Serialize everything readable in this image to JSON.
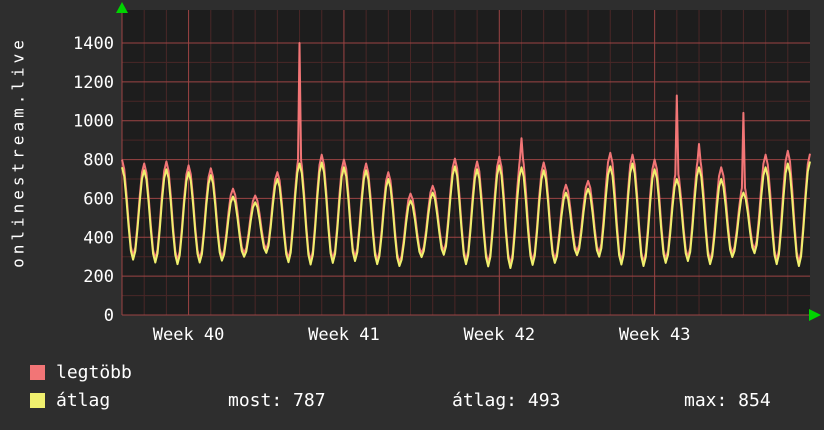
{
  "left_label": "onlinestream.live",
  "legend": {
    "series": [
      {
        "label": "legtöbb",
        "color": "#f27576"
      },
      {
        "label": "átlag",
        "color": "#f0f06e"
      }
    ],
    "stats": [
      {
        "text": "most: 787"
      },
      {
        "text": "átlag: 493"
      },
      {
        "text": "max: 854"
      }
    ]
  },
  "chart_data": {
    "type": "line",
    "title": "",
    "ylabel": "onlinestream.live",
    "xlabel": "",
    "ylim": [
      0,
      1400
    ],
    "y_ticks": [
      0,
      200,
      400,
      600,
      800,
      1000,
      1200,
      1400
    ],
    "x_ticks": [
      {
        "day": 3,
        "label": "Week 40"
      },
      {
        "day": 10,
        "label": "Week 41"
      },
      {
        "day": 17,
        "label": "Week 42"
      },
      {
        "day": 24,
        "label": "Week 43"
      }
    ],
    "days_total": 31,
    "grid": true,
    "legend_position": "bottom",
    "stats": {
      "most": 787,
      "atlag": 493,
      "max": 854
    },
    "colors": {
      "background": "#2e2e2e",
      "plot_background": "#1d1d1d",
      "grid_major": "#9c4444",
      "grid_minor": "#4a2727",
      "text": "#ffffff",
      "arrow": "#00d400",
      "series_max": "#f27576",
      "series_avg": "#f0f06e"
    },
    "series": [
      {
        "name": "legtöbb",
        "color": "#f27576",
        "peaks": [
          800,
          780,
          790,
          770,
          755,
          650,
          615,
          735,
          820,
          825,
          800,
          780,
          735,
          625,
          665,
          805,
          790,
          815,
          830,
          785,
          670,
          690,
          835,
          825,
          800,
          745,
          815,
          760,
          670,
          825,
          845,
          830
        ],
        "troughs": [
          303,
          288,
          280,
          288,
          298,
          318,
          338,
          290,
          278,
          286,
          296,
          280,
          270,
          316,
          328,
          280,
          268,
          260,
          276,
          286,
          326,
          318,
          278,
          270,
          286,
          296,
          280,
          316,
          336,
          280,
          270
        ],
        "spikes": [
          {
            "day": 8,
            "value": 1400
          },
          {
            "day": 18,
            "value": 910
          },
          {
            "day": 25,
            "value": 1130
          },
          {
            "day": 26,
            "value": 880
          },
          {
            "day": 28,
            "value": 1040
          }
        ]
      },
      {
        "name": "átlag",
        "color": "#f0f06e",
        "peaks": [
          760,
          745,
          750,
          735,
          720,
          610,
          580,
          700,
          780,
          785,
          760,
          745,
          700,
          590,
          630,
          765,
          750,
          770,
          760,
          745,
          630,
          650,
          765,
          780,
          750,
          700,
          760,
          700,
          630,
          760,
          780,
          790
        ],
        "troughs": [
          285,
          270,
          262,
          270,
          280,
          300,
          320,
          272,
          260,
          268,
          278,
          262,
          252,
          298,
          310,
          262,
          250,
          242,
          258,
          268,
          308,
          300,
          260,
          252,
          268,
          278,
          262,
          298,
          318,
          262,
          252
        ],
        "spikes": []
      }
    ]
  }
}
